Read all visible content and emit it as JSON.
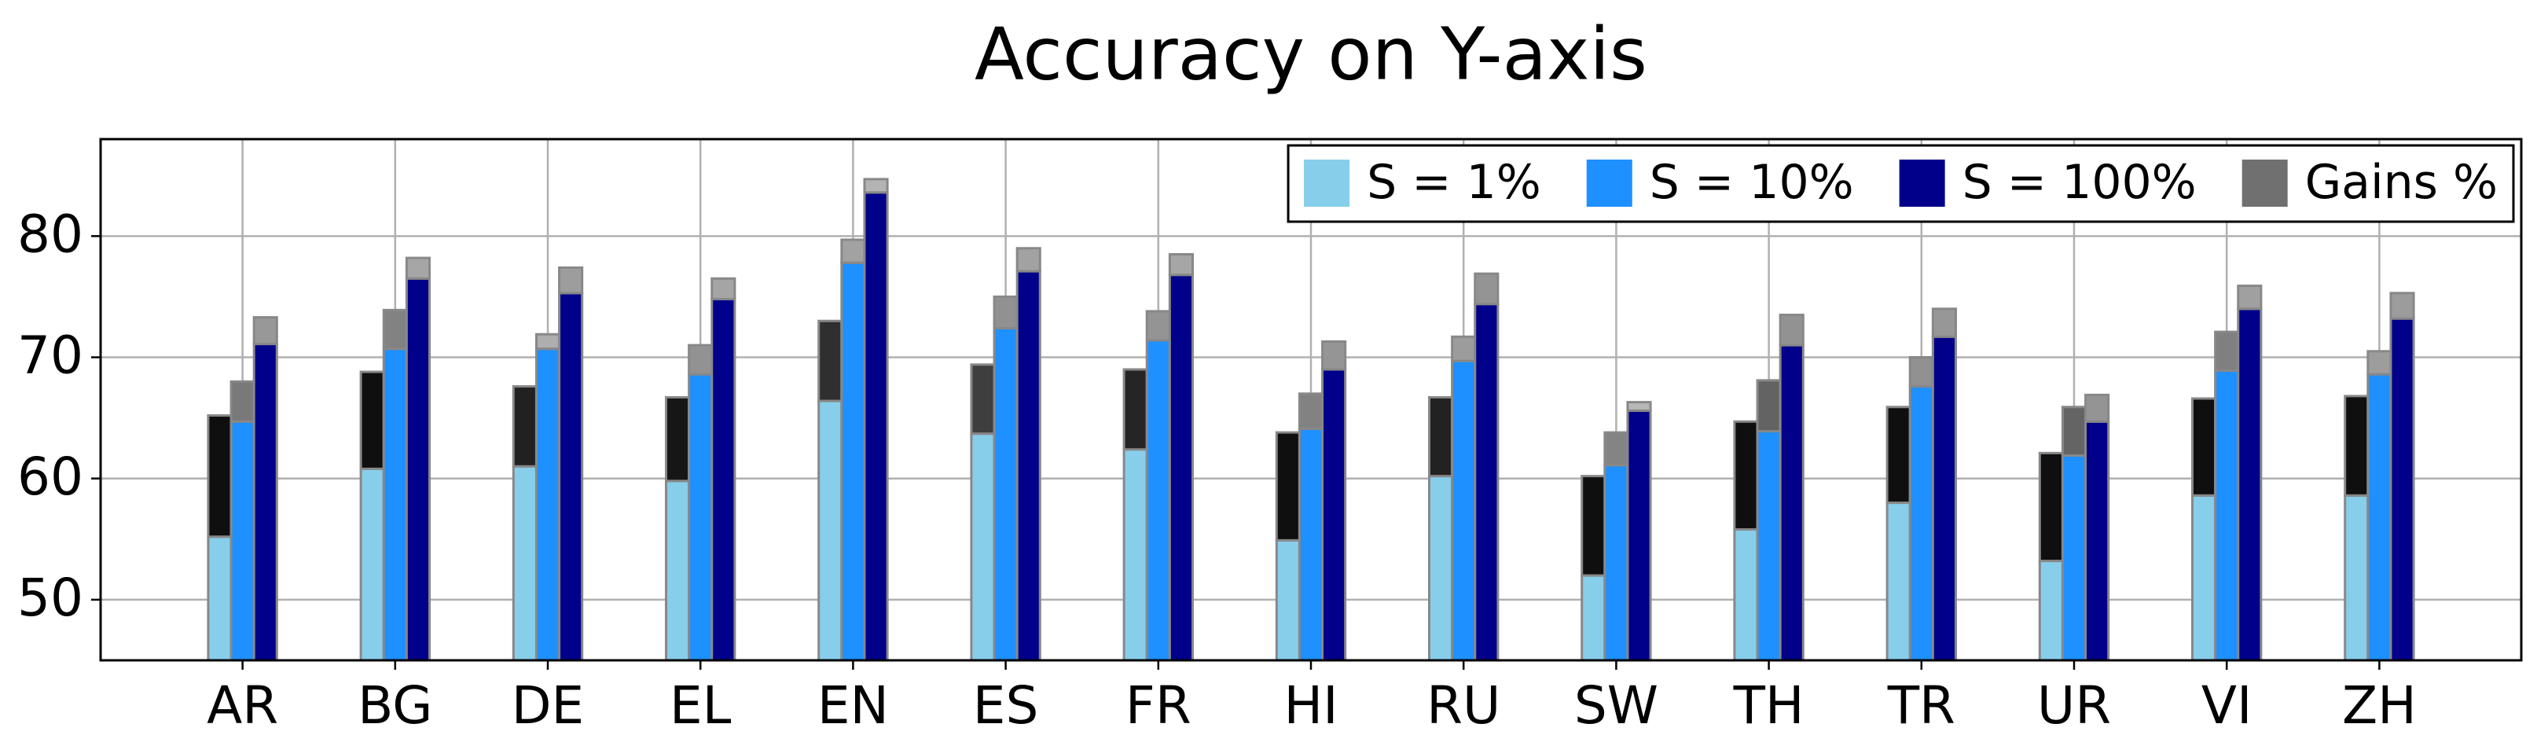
{
  "chart_data": {
    "type": "bar",
    "title": "Accuracy on Y-axis",
    "categories": [
      "AR",
      "BG",
      "DE",
      "EL",
      "EN",
      "ES",
      "FR",
      "HI",
      "RU",
      "SW",
      "TH",
      "TR",
      "UR",
      "VI",
      "ZH"
    ],
    "series": [
      {
        "name": "S = 1%",
        "color": "#87ceeb",
        "values": [
          55.2,
          60.8,
          61.0,
          59.8,
          66.4,
          63.7,
          62.4,
          54.9,
          60.2,
          52.0,
          55.8,
          58.0,
          53.2,
          58.6,
          58.6
        ],
        "gains": [
          10.0,
          8.0,
          6.6,
          6.9,
          6.6,
          5.7,
          6.6,
          8.9,
          6.5,
          8.2,
          8.9,
          7.9,
          8.9,
          8.0,
          8.2
        ]
      },
      {
        "name": "S = 10%",
        "color": "#1e90ff",
        "values": [
          64.7,
          70.7,
          70.7,
          68.6,
          77.8,
          72.4,
          71.4,
          64.1,
          69.7,
          61.1,
          63.9,
          67.6,
          61.9,
          68.9,
          68.6
        ],
        "gains": [
          3.3,
          3.2,
          1.2,
          2.4,
          1.9,
          2.6,
          2.4,
          2.9,
          2.0,
          2.7,
          4.2,
          2.4,
          4.0,
          3.2,
          1.9
        ]
      },
      {
        "name": "S = 100%",
        "color": "#00008b",
        "values": [
          71.1,
          76.5,
          75.3,
          74.8,
          83.6,
          77.1,
          76.8,
          69.0,
          74.4,
          65.6,
          71.0,
          71.7,
          64.7,
          74.0,
          73.2
        ],
        "gains": [
          2.2,
          1.7,
          2.1,
          1.7,
          1.1,
          1.9,
          1.7,
          2.3,
          2.5,
          0.7,
          2.5,
          2.3,
          2.2,
          1.9,
          2.1
        ]
      }
    ],
    "gains_name": "Gains %",
    "gains_color": "#707070",
    "ylim": [
      45,
      88
    ],
    "yticks": [
      50,
      60,
      70,
      80
    ],
    "grid": true,
    "legend": "upper right"
  }
}
